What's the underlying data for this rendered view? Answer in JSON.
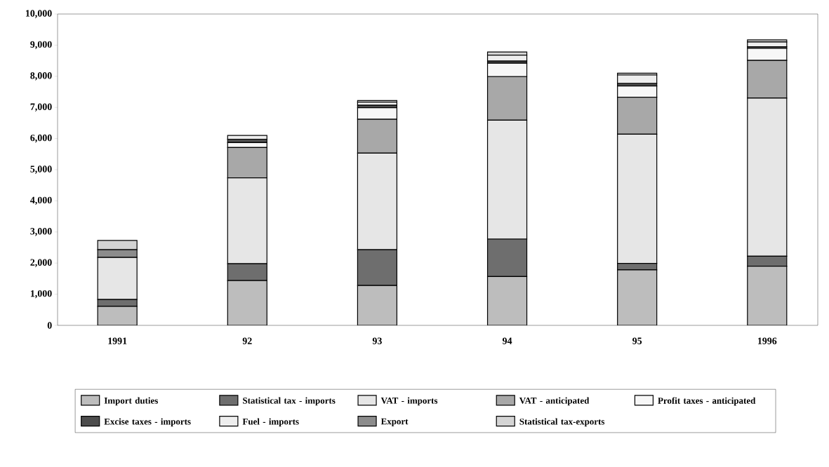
{
  "chart_data": {
    "type": "bar",
    "stacked": true,
    "categories": [
      "1991",
      "92",
      "93",
      "94",
      "95",
      "1996"
    ],
    "series": [
      {
        "name": "Import duties",
        "color": "#bdbdbd",
        "values": [
          610,
          1440,
          1280,
          1570,
          1780,
          1900
        ]
      },
      {
        "name": "Statistical tax - imports",
        "color": "#6e6e6e",
        "values": [
          220,
          540,
          1150,
          1200,
          210,
          320
        ]
      },
      {
        "name": "VAT - imports",
        "color": "#e6e6e6",
        "values": [
          1350,
          2760,
          3100,
          3820,
          4150,
          5080
        ]
      },
      {
        "name": "VAT - anticipated",
        "color": "#a8a8a8",
        "values": [
          0,
          970,
          1090,
          1400,
          1190,
          1210
        ]
      },
      {
        "name": "Profit taxes - anticipated",
        "color": "#f7f7f7",
        "values": [
          0,
          160,
          370,
          430,
          360,
          390
        ]
      },
      {
        "name": "Excise taxes - imports",
        "color": "#4d4d4d",
        "values": [
          0,
          110,
          80,
          70,
          80,
          50
        ]
      },
      {
        "name": "Fuel - imports",
        "color": "#eeeeee",
        "values": [
          0,
          120,
          100,
          190,
          270,
          150
        ]
      },
      {
        "name": "Export",
        "color": "#8c8c8c",
        "values": [
          250,
          0,
          0,
          0,
          0,
          0
        ]
      },
      {
        "name": "Statistical tax-exports",
        "color": "#d4d4d4",
        "values": [
          300,
          0,
          50,
          100,
          60,
          70
        ]
      }
    ],
    "ylim": [
      0,
      10000
    ],
    "yticks": [
      0,
      {
        "value": 1000,
        "label": "1,000"
      },
      {
        "value": 2000,
        "label": "2,000"
      },
      {
        "value": 3000,
        "label": "3,000"
      },
      {
        "value": 4000,
        "label": "4,000"
      },
      {
        "value": 5000,
        "label": "5,000"
      },
      {
        "value": 6000,
        "label": "6,000"
      },
      {
        "value": 7000,
        "label": "7,000"
      },
      {
        "value": 8000,
        "label": "8,000"
      },
      {
        "value": 9000,
        "label": "9,000"
      },
      {
        "value": 10000,
        "label": "10,000"
      }
    ],
    "legend": "bottom"
  }
}
